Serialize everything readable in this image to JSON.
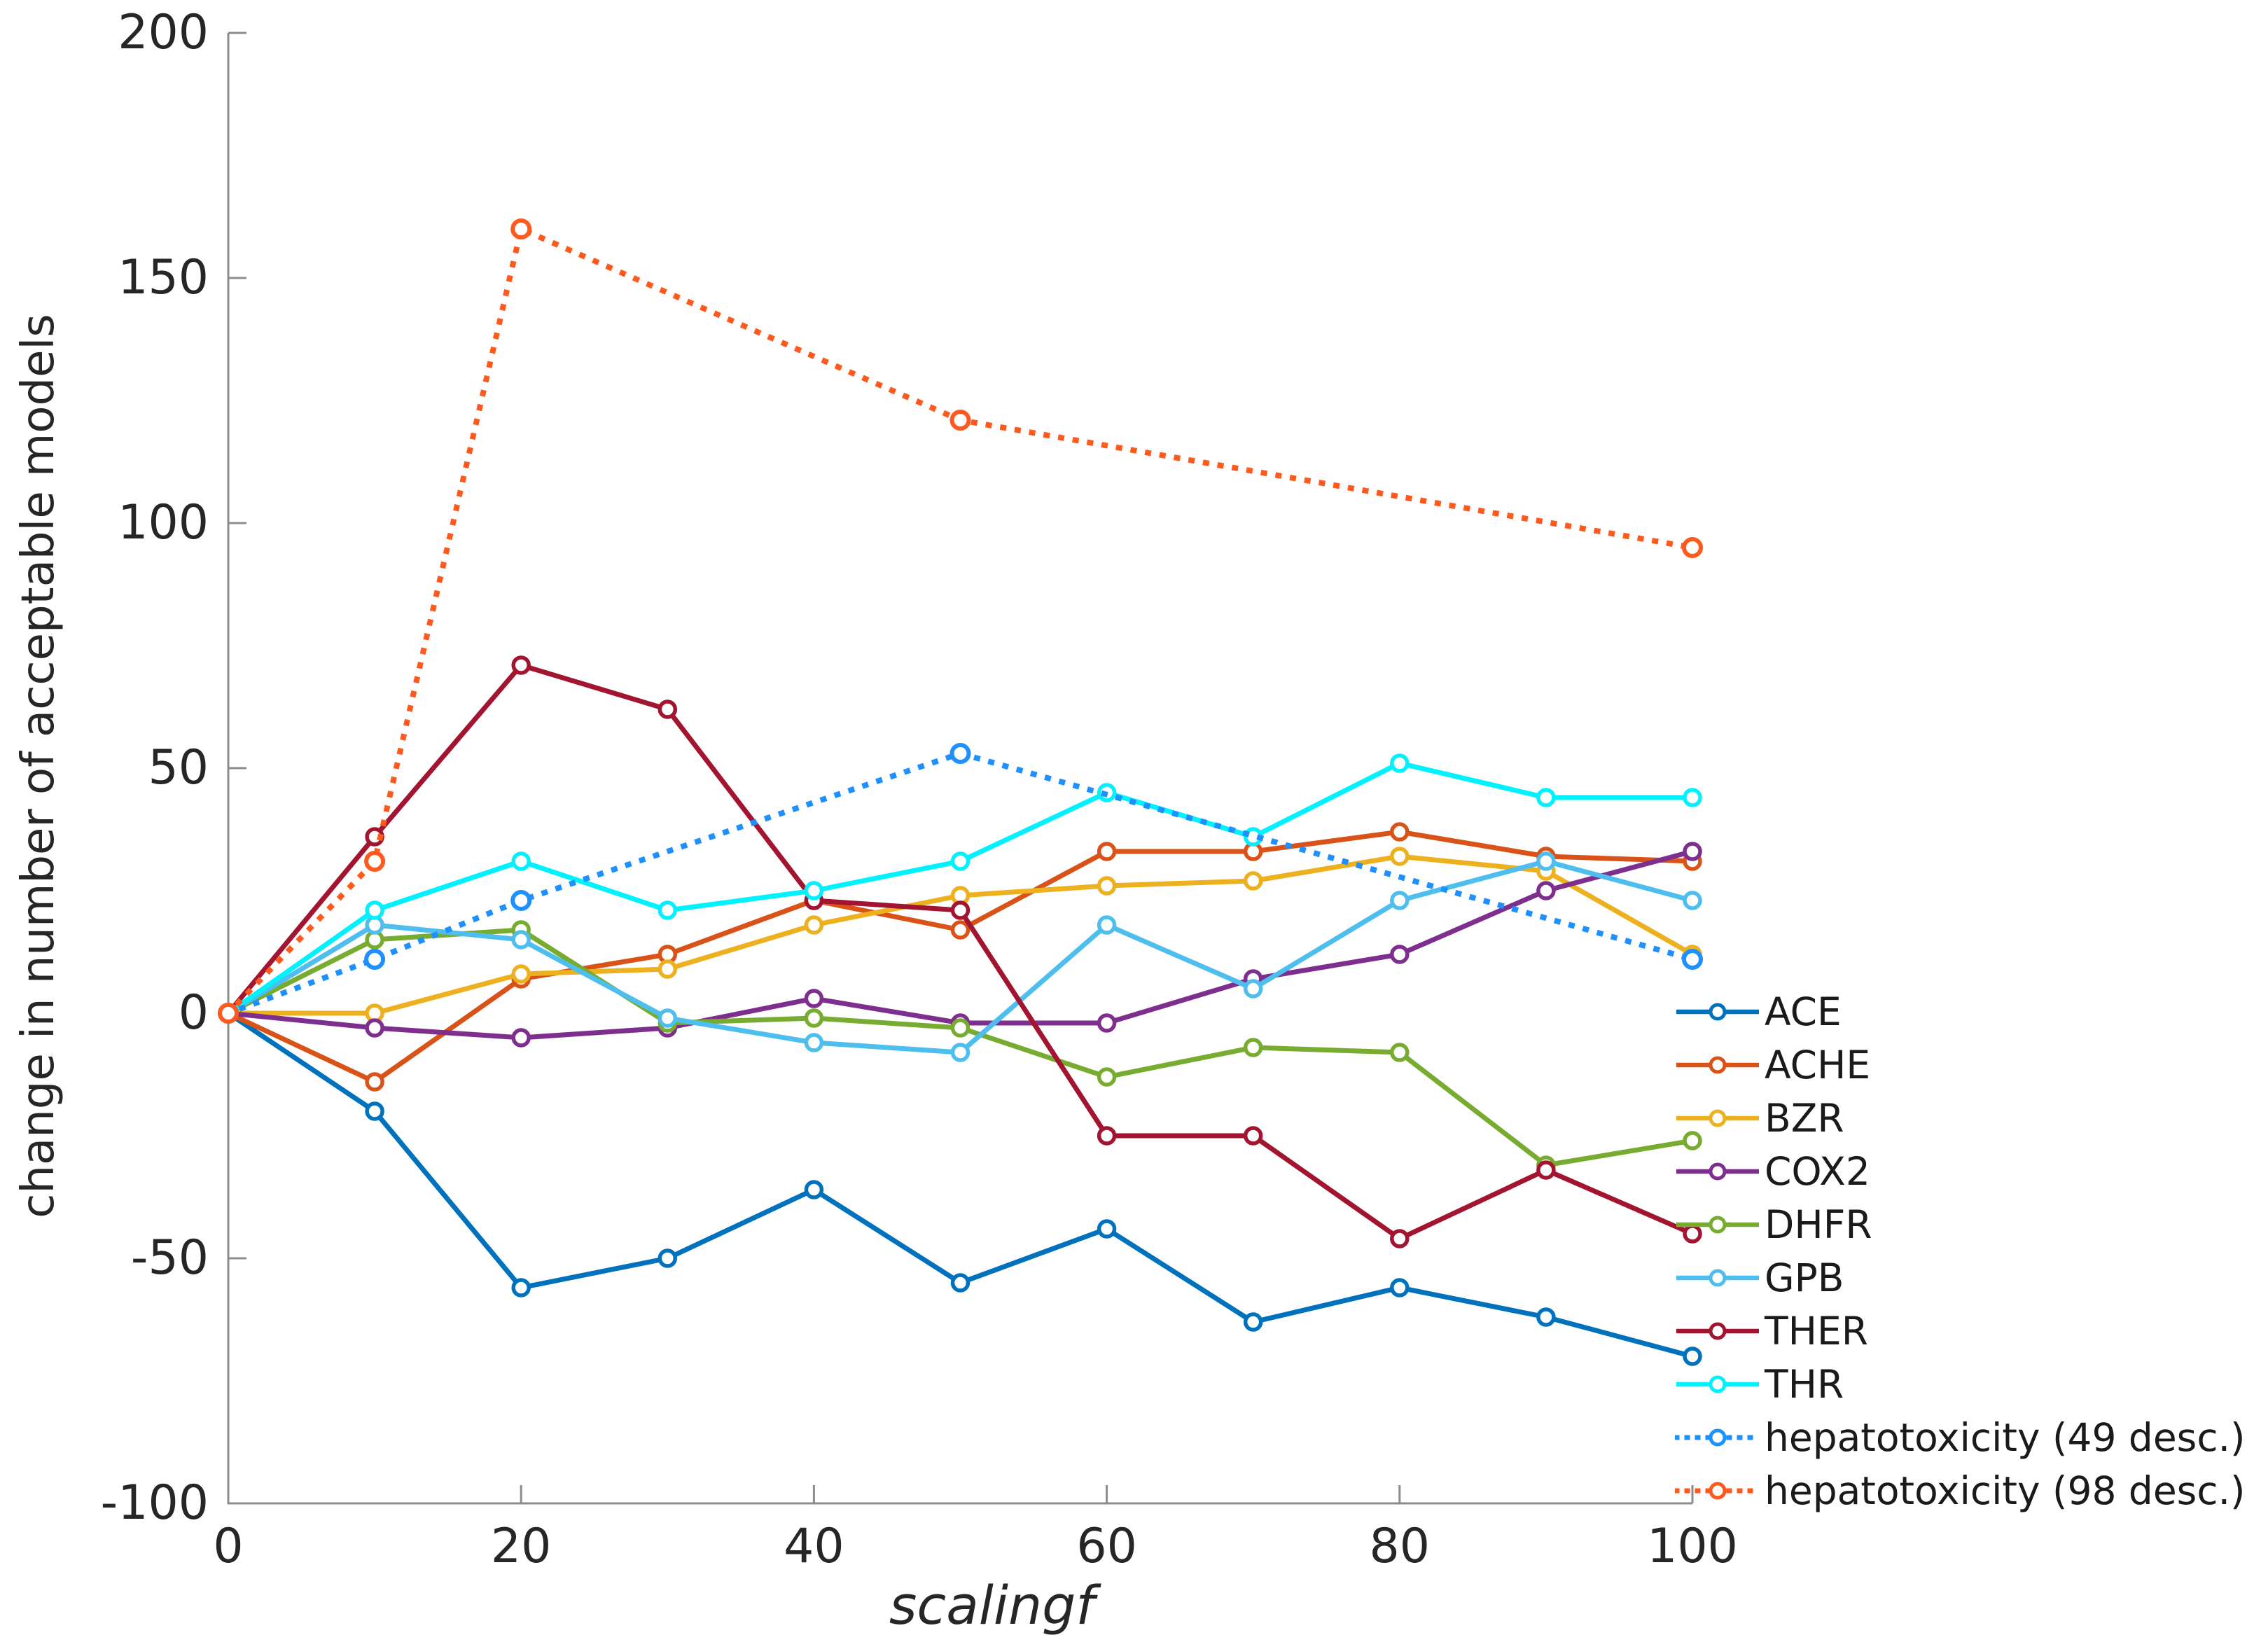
{
  "figure": {
    "background": "#ffffff",
    "axis_color": "#8c8c8c",
    "text_color": "#262626"
  },
  "chart_data": {
    "type": "line",
    "title": "",
    "xlabel": "scalingf",
    "ylabel": "change in number of acceptable models",
    "xlim": [
      0,
      100
    ],
    "ylim": [
      -100,
      200
    ],
    "xticks": [
      0,
      20,
      40,
      60,
      80,
      100
    ],
    "yticks": [
      200,
      150,
      100,
      50,
      0,
      -50,
      -100
    ],
    "grid": false,
    "legend_position": "right-outside",
    "series": [
      {
        "name": "ACE",
        "color": "#0072BD",
        "style": "solid",
        "x": [
          0,
          10,
          20,
          30,
          40,
          50,
          60,
          70,
          80,
          90,
          100
        ],
        "y": [
          0,
          -20,
          -56,
          -50,
          -36,
          -55,
          -44,
          -63,
          -56,
          -62,
          -70
        ]
      },
      {
        "name": "ACHE",
        "color": "#D95319",
        "style": "solid",
        "x": [
          0,
          10,
          20,
          30,
          40,
          50,
          60,
          70,
          80,
          90,
          100
        ],
        "y": [
          0,
          -14,
          7,
          12,
          23,
          17,
          33,
          33,
          37,
          32,
          31
        ]
      },
      {
        "name": "BZR",
        "color": "#EDB120",
        "style": "solid",
        "x": [
          0,
          10,
          20,
          30,
          40,
          50,
          60,
          70,
          80,
          90,
          100
        ],
        "y": [
          0,
          0,
          8,
          9,
          18,
          24,
          26,
          27,
          32,
          29,
          12
        ]
      },
      {
        "name": "COX2",
        "color": "#7E2F8E",
        "style": "solid",
        "x": [
          0,
          10,
          20,
          30,
          40,
          50,
          60,
          70,
          80,
          90,
          100
        ],
        "y": [
          0,
          -3,
          -5,
          -3,
          3,
          -2,
          -2,
          7,
          12,
          25,
          33
        ]
      },
      {
        "name": "DHFR",
        "color": "#77AC30",
        "style": "solid",
        "x": [
          0,
          10,
          20,
          30,
          40,
          50,
          60,
          70,
          80,
          90,
          100
        ],
        "y": [
          0,
          15,
          17,
          -2,
          -1,
          -3,
          -13,
          -7,
          -8,
          -31,
          -26
        ]
      },
      {
        "name": "GPB",
        "color": "#4DBEEE",
        "style": "solid",
        "x": [
          0,
          10,
          20,
          30,
          40,
          50,
          60,
          70,
          80,
          90,
          100
        ],
        "y": [
          0,
          18,
          15,
          -1,
          -6,
          -8,
          18,
          5,
          23,
          31,
          23
        ]
      },
      {
        "name": "THER",
        "color": "#A2142F",
        "style": "solid",
        "x": [
          0,
          10,
          20,
          30,
          40,
          50,
          60,
          70,
          80,
          90,
          100
        ],
        "y": [
          0,
          36,
          71,
          62,
          23,
          21,
          -25,
          -25,
          -46,
          -32,
          -45
        ]
      },
      {
        "name": "THR",
        "color": "#00F2FF",
        "style": "solid",
        "x": [
          0,
          10,
          20,
          30,
          40,
          50,
          60,
          70,
          80,
          90,
          100
        ],
        "y": [
          0,
          21,
          31,
          21,
          25,
          31,
          45,
          36,
          51,
          44,
          44
        ]
      },
      {
        "name": "hepatotoxicity (49 desc.)",
        "color": "#1E90FF",
        "style": "dotted",
        "x": [
          0,
          10,
          20,
          50,
          100
        ],
        "y": [
          0,
          11,
          23,
          53,
          11
        ]
      },
      {
        "name": "hepatotoxicity (98 desc.)",
        "color": "#FF5A1E",
        "style": "dotted",
        "x": [
          0,
          10,
          20,
          50,
          100
        ],
        "y": [
          0,
          31,
          160,
          121,
          95
        ]
      }
    ]
  }
}
